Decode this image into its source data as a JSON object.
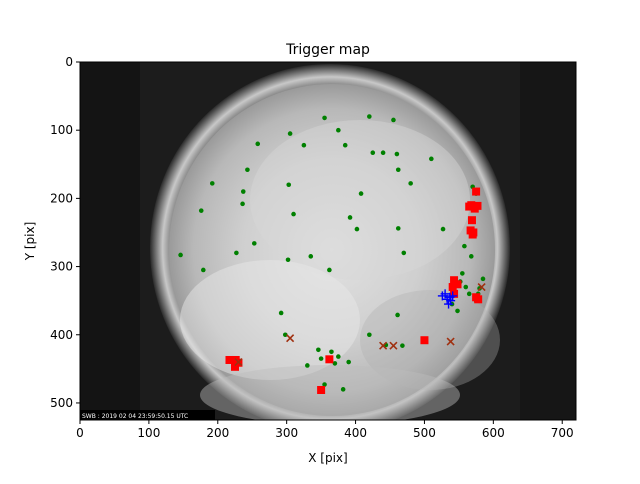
{
  "chart_data": {
    "type": "scatter",
    "title": "Trigger map",
    "xlabel": "X [pix]",
    "ylabel": "Y [pix]",
    "xlim": [
      0,
      720
    ],
    "ylim": [
      525,
      0
    ],
    "y_inverted": true,
    "xticks": [
      0,
      100,
      200,
      300,
      400,
      500,
      600,
      700
    ],
    "yticks": [
      0,
      100,
      200,
      300,
      400,
      500
    ],
    "grid": false,
    "background": "grayscale all-sky camera image (circular fisheye)",
    "image_timestamp_text": "SWB : 2019 02 04 23:59:50.15 UTC",
    "series": [
      {
        "marker": "dot",
        "color": "#008000",
        "points": [
          [
            355,
            82
          ],
          [
            420,
            80
          ],
          [
            455,
            85
          ],
          [
            375,
            100
          ],
          [
            305,
            105
          ],
          [
            258,
            120
          ],
          [
            325,
            122
          ],
          [
            385,
            122
          ],
          [
            425,
            133
          ],
          [
            440,
            133
          ],
          [
            460,
            135
          ],
          [
            510,
            142
          ],
          [
            462,
            158
          ],
          [
            243,
            158
          ],
          [
            192,
            178
          ],
          [
            303,
            180
          ],
          [
            480,
            178
          ],
          [
            237,
            190
          ],
          [
            408,
            193
          ],
          [
            570,
            183
          ],
          [
            575,
            193
          ],
          [
            236,
            208
          ],
          [
            176,
            218
          ],
          [
            310,
            223
          ],
          [
            392,
            228
          ],
          [
            402,
            245
          ],
          [
            462,
            244
          ],
          [
            527,
            245
          ],
          [
            253,
            266
          ],
          [
            227,
            280
          ],
          [
            146,
            283
          ],
          [
            302,
            290
          ],
          [
            470,
            280
          ],
          [
            335,
            285
          ],
          [
            558,
            270
          ],
          [
            568,
            285
          ],
          [
            362,
            305
          ],
          [
            179,
            305
          ],
          [
            555,
            310
          ],
          [
            585,
            318
          ],
          [
            552,
            322
          ],
          [
            580,
            332
          ],
          [
            560,
            330
          ],
          [
            565,
            340
          ],
          [
            578,
            340
          ],
          [
            575,
            350
          ],
          [
            540,
            355
          ],
          [
            548,
            365
          ],
          [
            461,
            371
          ],
          [
            292,
            368
          ],
          [
            298,
            400
          ],
          [
            420,
            400
          ],
          [
            365,
            425
          ],
          [
            346,
            422
          ],
          [
            350,
            435
          ],
          [
            375,
            432
          ],
          [
            444,
            415
          ],
          [
            468,
            416
          ],
          [
            330,
            445
          ],
          [
            370,
            442
          ],
          [
            390,
            440
          ],
          [
            355,
            473
          ],
          [
            382,
            480
          ]
        ]
      },
      {
        "marker": "square",
        "color": "#ff0000",
        "points": [
          [
            575,
            190
          ],
          [
            568,
            210
          ],
          [
            573,
            215
          ],
          [
            577,
            211
          ],
          [
            565,
            212
          ],
          [
            569,
            232
          ],
          [
            571,
            250
          ],
          [
            567,
            247
          ],
          [
            570,
            253
          ],
          [
            543,
            320
          ],
          [
            548,
            326
          ],
          [
            541,
            330
          ],
          [
            543,
            340
          ],
          [
            575,
            345
          ],
          [
            578,
            348
          ],
          [
            500,
            408
          ],
          [
            362,
            436
          ],
          [
            217,
            437
          ],
          [
            226,
            437
          ],
          [
            225,
            447
          ],
          [
            230,
            441
          ],
          [
            350,
            481
          ]
        ]
      },
      {
        "marker": "x",
        "color": "#a03010",
        "points": [
          [
            305,
            405
          ],
          [
            440,
            416
          ],
          [
            455,
            416
          ],
          [
            538,
            410
          ],
          [
            583,
            330
          ],
          [
            230,
            440
          ]
        ]
      },
      {
        "marker": "plus",
        "color": "#0000ff",
        "points": [
          [
            530,
            340
          ],
          [
            533,
            348
          ],
          [
            537,
            345
          ],
          [
            535,
            355
          ],
          [
            538,
            350
          ],
          [
            526,
            343
          ],
          [
            541,
            343
          ]
        ]
      }
    ]
  }
}
